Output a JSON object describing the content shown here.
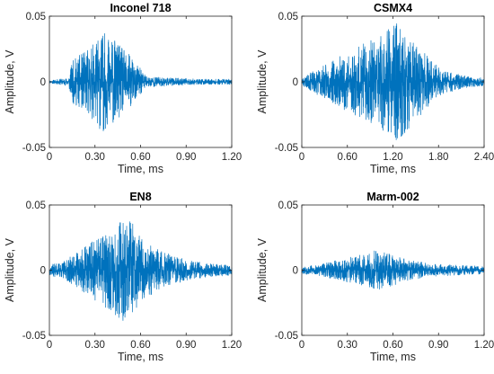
{
  "chart_data": [
    {
      "type": "line",
      "title": "Inconel 718",
      "xlabel": "Time, ms",
      "ylabel": "Amplitude, V",
      "xlim": [
        0,
        1.2
      ],
      "ylim": [
        -0.05,
        0.05
      ],
      "xticks": [
        0,
        0.3,
        0.6,
        0.9,
        1.2
      ],
      "xtick_labels": [
        "0",
        "0.30",
        "0.60",
        "0.90",
        "1.20"
      ],
      "yticks": [
        -0.05,
        0,
        0.05
      ],
      "ytick_labels": [
        "-0.05",
        "0",
        "0.05"
      ],
      "color": "#0072bd",
      "grid": false,
      "series": [
        {
          "x": [
            0,
            0.12,
            0.16,
            0.22,
            0.28,
            0.34,
            0.4,
            0.48,
            0.55,
            0.6,
            0.66,
            0.8,
            1.0,
            1.2
          ],
          "amplitude_envelope": [
            0.001,
            0.003,
            0.018,
            0.022,
            0.028,
            0.038,
            0.036,
            0.026,
            0.018,
            0.01,
            0.004,
            0.003,
            0.002,
            0.002
          ]
        }
      ]
    },
    {
      "type": "line",
      "title": "CSMX4",
      "xlabel": "Time, ms",
      "ylabel": "Amplitude, V",
      "xlim": [
        0,
        2.4
      ],
      "ylim": [
        -0.05,
        0.05
      ],
      "xticks": [
        0,
        0.6,
        1.2,
        1.8,
        2.4
      ],
      "xtick_labels": [
        "0",
        "0.60",
        "1.20",
        "1.80",
        "2.40"
      ],
      "yticks": [
        -0.05,
        0,
        0.05
      ],
      "ytick_labels": [
        "-0.05",
        "0",
        "0.05"
      ],
      "color": "#0072bd",
      "grid": false,
      "series": [
        {
          "x": [
            0,
            0.15,
            0.4,
            0.7,
            1.0,
            1.25,
            1.35,
            1.55,
            1.8,
            2.0,
            2.2,
            2.4
          ],
          "amplitude_envelope": [
            0.003,
            0.008,
            0.016,
            0.026,
            0.034,
            0.045,
            0.04,
            0.026,
            0.012,
            0.007,
            0.004,
            0.003
          ]
        }
      ]
    },
    {
      "type": "line",
      "title": "EN8",
      "xlabel": "Time, ms",
      "ylabel": "Amplitude, V",
      "xlim": [
        0,
        1.2
      ],
      "ylim": [
        -0.05,
        0.05
      ],
      "xticks": [
        0,
        0.3,
        0.6,
        0.9,
        1.2
      ],
      "xtick_labels": [
        "0",
        "0.30",
        "0.60",
        "0.90",
        "1.20"
      ],
      "yticks": [
        -0.05,
        0,
        0.05
      ],
      "ytick_labels": [
        "-0.05",
        "0",
        "0.05"
      ],
      "color": "#0072bd",
      "grid": false,
      "series": [
        {
          "x": [
            0,
            0.1,
            0.25,
            0.38,
            0.48,
            0.55,
            0.62,
            0.75,
            0.9,
            1.05,
            1.2
          ],
          "amplitude_envelope": [
            0.004,
            0.007,
            0.02,
            0.03,
            0.04,
            0.036,
            0.022,
            0.014,
            0.008,
            0.005,
            0.004
          ]
        }
      ]
    },
    {
      "type": "line",
      "title": "Marm-002",
      "xlabel": "Time, ms",
      "ylabel": "Amplitude, V",
      "xlim": [
        0,
        1.2
      ],
      "ylim": [
        -0.05,
        0.05
      ],
      "xticks": [
        0,
        0.3,
        0.6,
        0.9,
        1.2
      ],
      "xtick_labels": [
        "0",
        "0.30",
        "0.60",
        "0.90",
        "1.20"
      ],
      "yticks": [
        -0.05,
        0,
        0.05
      ],
      "ytick_labels": [
        "-0.05",
        "0",
        "0.05"
      ],
      "color": "#0072bd",
      "grid": false,
      "series": [
        {
          "x": [
            0,
            0.1,
            0.25,
            0.4,
            0.5,
            0.6,
            0.7,
            0.85,
            1.0,
            1.2
          ],
          "amplitude_envelope": [
            0.003,
            0.004,
            0.008,
            0.012,
            0.016,
            0.012,
            0.008,
            0.005,
            0.004,
            0.003
          ]
        }
      ]
    }
  ]
}
